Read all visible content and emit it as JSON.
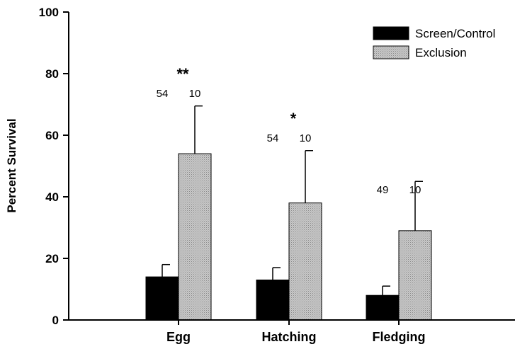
{
  "chart_data": {
    "type": "bar",
    "ylabel": "Percent Survival",
    "ylim": [
      0,
      100
    ],
    "yticks": [
      0,
      20,
      40,
      60,
      80,
      100
    ],
    "categories": [
      "Egg",
      "Hatching",
      "Fledging"
    ],
    "series": [
      {
        "name": "Screen/Control",
        "color": "#000000",
        "values": [
          14,
          13,
          8
        ],
        "errors": [
          4,
          4,
          3
        ],
        "n": [
          "54",
          "54",
          "49"
        ]
      },
      {
        "name": "Exclusion",
        "color": "#c0c0c0",
        "values": [
          54,
          38,
          29
        ],
        "errors": [
          15.5,
          17,
          16
        ],
        "n": [
          "10",
          "10",
          "10"
        ]
      }
    ],
    "significance": [
      "**",
      "*",
      ""
    ],
    "legend_position": "top-right"
  }
}
